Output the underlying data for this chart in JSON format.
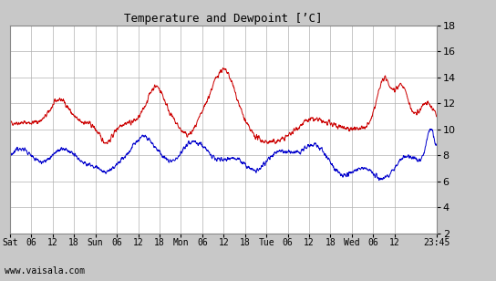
{
  "title": "Temperature and Dewpoint [ʼC]",
  "ylim": [
    2,
    18
  ],
  "yticks": [
    2,
    4,
    6,
    8,
    10,
    12,
    14,
    16,
    18
  ],
  "bg_color": "#c8c8c8",
  "plot_bg_color": "#ffffff",
  "red_color": "#cc0000",
  "blue_color": "#0000cc",
  "watermark": "www.vaisala.com",
  "xtick_labels": [
    "Sat",
    "06",
    "12",
    "18",
    "Sun",
    "06",
    "12",
    "18",
    "Mon",
    "06",
    "12",
    "18",
    "Tue",
    "06",
    "12",
    "18",
    "Wed",
    "06",
    "12",
    "23:45"
  ],
  "xtick_positions": [
    0,
    6,
    12,
    18,
    24,
    30,
    36,
    42,
    48,
    54,
    60,
    66,
    72,
    78,
    84,
    90,
    96,
    102,
    108,
    119.75
  ],
  "total_hours": 119.75,
  "noise_seed": 42
}
